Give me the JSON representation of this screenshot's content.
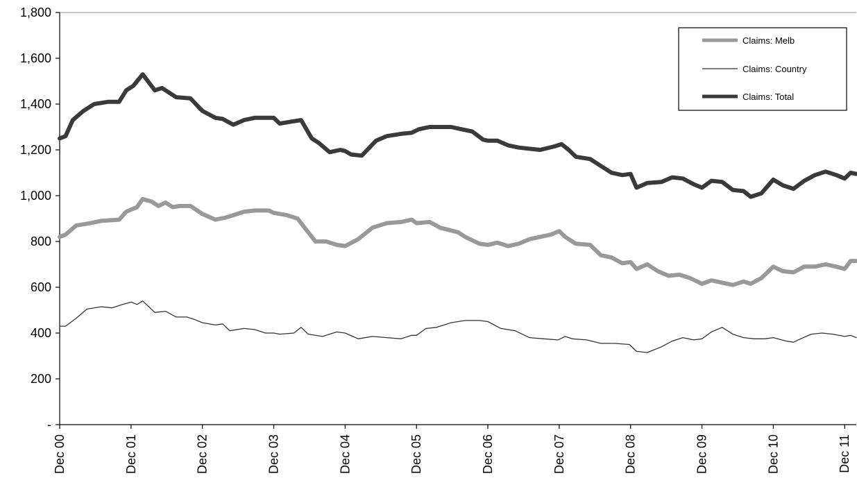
{
  "chart_data": {
    "type": "line",
    "title": "",
    "xlabel": "",
    "ylabel": "",
    "ylim": [
      0,
      1800
    ],
    "xlim": [
      2000.917,
      2012.08
    ],
    "y_ticks": [
      0,
      200,
      400,
      600,
      800,
      1000,
      1200,
      1400,
      1600,
      1800
    ],
    "y_tick_labels": [
      "-",
      "200",
      "400",
      "600",
      "800",
      "1,000",
      "1,200",
      "1,400",
      "1,600",
      "1,800"
    ],
    "x_ticks": [
      2000.917,
      2001.917,
      2002.917,
      2003.917,
      2004.917,
      2005.917,
      2006.917,
      2007.917,
      2008.917,
      2009.917,
      2010.917,
      2011.917
    ],
    "x_tick_labels": [
      "Dec 00",
      "Dec 01",
      "Dec 02",
      "Dec 03",
      "Dec 04",
      "Dec 05",
      "Dec 06",
      "Dec 07",
      "Dec 08",
      "Dec 09",
      "Dec 10",
      "Dec 11"
    ],
    "legend_position": "top-right",
    "grid": false,
    "series": [
      {
        "name": "Claims: Melb",
        "color": "#999999",
        "points": [
          [
            2000.917,
            820
          ],
          [
            2001.0,
            830
          ],
          [
            2001.15,
            870
          ],
          [
            2001.35,
            880
          ],
          [
            2001.5,
            890
          ],
          [
            2001.75,
            895
          ],
          [
            2001.85,
            930
          ],
          [
            2002.0,
            950
          ],
          [
            2002.08,
            985
          ],
          [
            2002.2,
            975
          ],
          [
            2002.3,
            955
          ],
          [
            2002.4,
            970
          ],
          [
            2002.5,
            950
          ],
          [
            2002.6,
            955
          ],
          [
            2002.75,
            955
          ],
          [
            2002.917,
            920
          ],
          [
            2003.1,
            895
          ],
          [
            2003.25,
            905
          ],
          [
            2003.35,
            915
          ],
          [
            2003.5,
            930
          ],
          [
            2003.65,
            935
          ],
          [
            2003.85,
            935
          ],
          [
            2003.917,
            925
          ],
          [
            2004.1,
            915
          ],
          [
            2004.25,
            900
          ],
          [
            2004.4,
            840
          ],
          [
            2004.5,
            800
          ],
          [
            2004.65,
            800
          ],
          [
            2004.8,
            785
          ],
          [
            2004.917,
            780
          ],
          [
            2005.1,
            810
          ],
          [
            2005.3,
            860
          ],
          [
            2005.5,
            880
          ],
          [
            2005.7,
            885
          ],
          [
            2005.85,
            895
          ],
          [
            2005.917,
            880
          ],
          [
            2006.1,
            885
          ],
          [
            2006.25,
            860
          ],
          [
            2006.5,
            840
          ],
          [
            2006.6,
            820
          ],
          [
            2006.8,
            790
          ],
          [
            2006.917,
            785
          ],
          [
            2007.05,
            795
          ],
          [
            2007.2,
            780
          ],
          [
            2007.35,
            790
          ],
          [
            2007.5,
            810
          ],
          [
            2007.65,
            820
          ],
          [
            2007.8,
            830
          ],
          [
            2007.917,
            845
          ],
          [
            2008.0,
            820
          ],
          [
            2008.15,
            790
          ],
          [
            2008.35,
            785
          ],
          [
            2008.5,
            740
          ],
          [
            2008.65,
            730
          ],
          [
            2008.8,
            705
          ],
          [
            2008.917,
            710
          ],
          [
            2009.0,
            680
          ],
          [
            2009.15,
            700
          ],
          [
            2009.3,
            670
          ],
          [
            2009.45,
            650
          ],
          [
            2009.6,
            655
          ],
          [
            2009.75,
            640
          ],
          [
            2009.917,
            615
          ],
          [
            2010.05,
            630
          ],
          [
            2010.2,
            620
          ],
          [
            2010.35,
            610
          ],
          [
            2010.5,
            625
          ],
          [
            2010.6,
            615
          ],
          [
            2010.75,
            640
          ],
          [
            2010.917,
            690
          ],
          [
            2011.05,
            670
          ],
          [
            2011.2,
            665
          ],
          [
            2011.35,
            690
          ],
          [
            2011.5,
            690
          ],
          [
            2011.65,
            700
          ],
          [
            2011.8,
            690
          ],
          [
            2011.917,
            680
          ],
          [
            2012.0,
            715
          ],
          [
            2012.08,
            715
          ]
        ]
      },
      {
        "name": "Claims: Country",
        "color": "#333333",
        "points": [
          [
            2000.917,
            430
          ],
          [
            2001.0,
            430
          ],
          [
            2001.15,
            465
          ],
          [
            2001.3,
            505
          ],
          [
            2001.5,
            515
          ],
          [
            2001.65,
            510
          ],
          [
            2001.8,
            525
          ],
          [
            2001.92,
            535
          ],
          [
            2002.0,
            525
          ],
          [
            2002.08,
            540
          ],
          [
            2002.25,
            490
          ],
          [
            2002.4,
            495
          ],
          [
            2002.55,
            470
          ],
          [
            2002.7,
            470
          ],
          [
            2002.8,
            460
          ],
          [
            2002.917,
            445
          ],
          [
            2003.1,
            435
          ],
          [
            2003.2,
            440
          ],
          [
            2003.3,
            410
          ],
          [
            2003.5,
            420
          ],
          [
            2003.65,
            415
          ],
          [
            2003.8,
            400
          ],
          [
            2003.917,
            400
          ],
          [
            2004.0,
            395
          ],
          [
            2004.2,
            400
          ],
          [
            2004.3,
            425
          ],
          [
            2004.4,
            395
          ],
          [
            2004.6,
            385
          ],
          [
            2004.8,
            405
          ],
          [
            2004.917,
            400
          ],
          [
            2005.1,
            375
          ],
          [
            2005.3,
            385
          ],
          [
            2005.5,
            380
          ],
          [
            2005.7,
            375
          ],
          [
            2005.85,
            390
          ],
          [
            2005.917,
            390
          ],
          [
            2006.05,
            420
          ],
          [
            2006.2,
            425
          ],
          [
            2006.4,
            445
          ],
          [
            2006.6,
            455
          ],
          [
            2006.8,
            455
          ],
          [
            2006.917,
            450
          ],
          [
            2007.1,
            420
          ],
          [
            2007.3,
            410
          ],
          [
            2007.5,
            380
          ],
          [
            2007.7,
            375
          ],
          [
            2007.9,
            370
          ],
          [
            2008.0,
            385
          ],
          [
            2008.1,
            375
          ],
          [
            2008.3,
            370
          ],
          [
            2008.5,
            355
          ],
          [
            2008.7,
            355
          ],
          [
            2008.9,
            350
          ],
          [
            2009.0,
            320
          ],
          [
            2009.15,
            315
          ],
          [
            2009.35,
            340
          ],
          [
            2009.5,
            365
          ],
          [
            2009.65,
            380
          ],
          [
            2009.8,
            370
          ],
          [
            2009.917,
            375
          ],
          [
            2010.05,
            405
          ],
          [
            2010.2,
            425
          ],
          [
            2010.35,
            395
          ],
          [
            2010.5,
            380
          ],
          [
            2010.65,
            375
          ],
          [
            2010.8,
            375
          ],
          [
            2010.917,
            380
          ],
          [
            2011.1,
            365
          ],
          [
            2011.2,
            360
          ],
          [
            2011.3,
            375
          ],
          [
            2011.45,
            395
          ],
          [
            2011.6,
            400
          ],
          [
            2011.75,
            395
          ],
          [
            2011.917,
            385
          ],
          [
            2012.0,
            390
          ],
          [
            2012.08,
            380
          ]
        ]
      },
      {
        "name": "Claims: Total",
        "color": "#3a3a3a",
        "points": [
          [
            2000.917,
            1250
          ],
          [
            2001.0,
            1260
          ],
          [
            2001.1,
            1330
          ],
          [
            2001.25,
            1370
          ],
          [
            2001.4,
            1400
          ],
          [
            2001.6,
            1410
          ],
          [
            2001.75,
            1410
          ],
          [
            2001.85,
            1460
          ],
          [
            2001.95,
            1480
          ],
          [
            2002.08,
            1530
          ],
          [
            2002.25,
            1460
          ],
          [
            2002.35,
            1470
          ],
          [
            2002.45,
            1450
          ],
          [
            2002.55,
            1430
          ],
          [
            2002.75,
            1425
          ],
          [
            2002.917,
            1370
          ],
          [
            2003.1,
            1340
          ],
          [
            2003.2,
            1335
          ],
          [
            2003.35,
            1310
          ],
          [
            2003.5,
            1330
          ],
          [
            2003.65,
            1340
          ],
          [
            2003.8,
            1340
          ],
          [
            2003.917,
            1340
          ],
          [
            2004.0,
            1315
          ],
          [
            2004.2,
            1325
          ],
          [
            2004.3,
            1330
          ],
          [
            2004.45,
            1250
          ],
          [
            2004.55,
            1230
          ],
          [
            2004.7,
            1190
          ],
          [
            2004.85,
            1200
          ],
          [
            2004.917,
            1195
          ],
          [
            2005.0,
            1180
          ],
          [
            2005.15,
            1175
          ],
          [
            2005.35,
            1240
          ],
          [
            2005.5,
            1260
          ],
          [
            2005.7,
            1270
          ],
          [
            2005.85,
            1275
          ],
          [
            2005.95,
            1290
          ],
          [
            2006.1,
            1300
          ],
          [
            2006.25,
            1300
          ],
          [
            2006.4,
            1300
          ],
          [
            2006.55,
            1290
          ],
          [
            2006.7,
            1280
          ],
          [
            2006.85,
            1245
          ],
          [
            2006.917,
            1240
          ],
          [
            2007.05,
            1240
          ],
          [
            2007.2,
            1220
          ],
          [
            2007.35,
            1210
          ],
          [
            2007.5,
            1205
          ],
          [
            2007.65,
            1200
          ],
          [
            2007.85,
            1215
          ],
          [
            2007.95,
            1225
          ],
          [
            2008.05,
            1200
          ],
          [
            2008.15,
            1170
          ],
          [
            2008.35,
            1160
          ],
          [
            2008.5,
            1130
          ],
          [
            2008.65,
            1100
          ],
          [
            2008.8,
            1090
          ],
          [
            2008.917,
            1095
          ],
          [
            2009.0,
            1035
          ],
          [
            2009.15,
            1055
          ],
          [
            2009.35,
            1060
          ],
          [
            2009.5,
            1080
          ],
          [
            2009.65,
            1075
          ],
          [
            2009.8,
            1050
          ],
          [
            2009.917,
            1035
          ],
          [
            2010.05,
            1065
          ],
          [
            2010.2,
            1060
          ],
          [
            2010.35,
            1025
          ],
          [
            2010.5,
            1020
          ],
          [
            2010.6,
            995
          ],
          [
            2010.75,
            1010
          ],
          [
            2010.917,
            1070
          ],
          [
            2011.05,
            1045
          ],
          [
            2011.2,
            1030
          ],
          [
            2011.35,
            1065
          ],
          [
            2011.5,
            1090
          ],
          [
            2011.65,
            1105
          ],
          [
            2011.8,
            1090
          ],
          [
            2011.917,
            1075
          ],
          [
            2012.0,
            1100
          ],
          [
            2012.08,
            1095
          ]
        ]
      }
    ]
  }
}
